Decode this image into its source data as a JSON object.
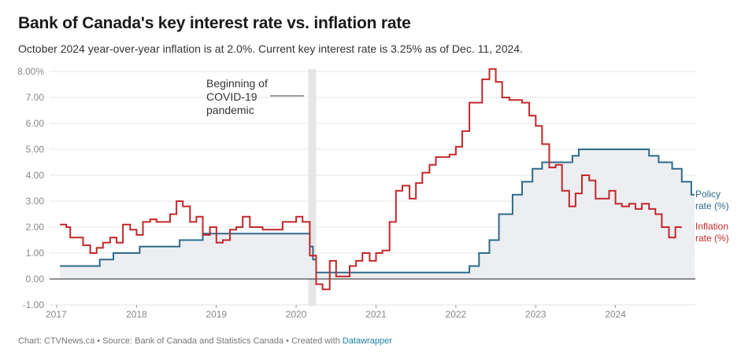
{
  "title": "Bank of Canada's key interest rate vs. inflation rate",
  "subtitle": "October 2024 year-over-year inflation is at 2.0%. Current key interest rate is 3.25% as of Dec. 11, 2024.",
  "footer": {
    "chart_credit": "Chart: CTVNews.ca",
    "sep": " • ",
    "source": "Source: Bank of Canada and Statistics Canada",
    "created_with": "Created with ",
    "tool": "Datawrapper"
  },
  "annotation": {
    "line1": "Beginning of",
    "line2": "COVID-19",
    "line3": "pandemic"
  },
  "colors": {
    "policy": "#2e6a8a",
    "inflation": "#c0282b",
    "area": "#eceef1",
    "band": "#e5e5e5",
    "grid": "#e6e6e6"
  },
  "chart_data": {
    "type": "line",
    "xlabel": "",
    "ylabel": "",
    "xlim": [
      2017.0,
      2025.0
    ],
    "ylim": [
      -1.0,
      8.0
    ],
    "y_ticks": [
      -1,
      0,
      1,
      2,
      3,
      4,
      5,
      6,
      7,
      8
    ],
    "y_tick_labels": [
      "-1.00",
      "0.00",
      "1.00",
      "2.00",
      "3.00",
      "4.00",
      "5.00",
      "6.00",
      "7.00",
      "8.00%"
    ],
    "x_ticks": [
      2017,
      2018,
      2019,
      2020,
      2021,
      2022,
      2023,
      2024
    ],
    "x_tick_labels": [
      "2017",
      "2018",
      "2019",
      "2020",
      "2021",
      "2022",
      "2023",
      "2024"
    ],
    "highlight_band": {
      "start": 2020.15,
      "end": 2020.25,
      "label": "Beginning of COVID-19 pandemic"
    },
    "series": [
      {
        "name": "Policy rate (%)",
        "label_line1": "Policy",
        "label_line2": "rate (%)",
        "step": true,
        "points": [
          [
            2017.04,
            0.5
          ],
          [
            2017.54,
            0.75
          ],
          [
            2017.71,
            1.0
          ],
          [
            2018.04,
            1.25
          ],
          [
            2018.54,
            1.5
          ],
          [
            2018.83,
            1.75
          ],
          [
            2020.17,
            1.25
          ],
          [
            2020.21,
            0.75
          ],
          [
            2020.25,
            0.25
          ],
          [
            2022.17,
            0.5
          ],
          [
            2022.29,
            1.0
          ],
          [
            2022.42,
            1.5
          ],
          [
            2022.54,
            2.5
          ],
          [
            2022.71,
            3.25
          ],
          [
            2022.83,
            3.75
          ],
          [
            2022.96,
            4.25
          ],
          [
            2023.08,
            4.5
          ],
          [
            2023.46,
            4.75
          ],
          [
            2023.54,
            5.0
          ],
          [
            2024.42,
            4.75
          ],
          [
            2024.54,
            4.5
          ],
          [
            2024.71,
            4.25
          ],
          [
            2024.83,
            3.75
          ],
          [
            2024.95,
            3.25
          ],
          [
            2024.99,
            3.25
          ]
        ]
      },
      {
        "name": "Inflation rate (%)",
        "label_line1": "Inflation",
        "label_line2": "rate (%)",
        "step": true,
        "points": [
          [
            2017.04,
            2.1
          ],
          [
            2017.12,
            2.0
          ],
          [
            2017.17,
            1.6
          ],
          [
            2017.33,
            1.3
          ],
          [
            2017.42,
            1.0
          ],
          [
            2017.5,
            1.2
          ],
          [
            2017.58,
            1.4
          ],
          [
            2017.67,
            1.6
          ],
          [
            2017.75,
            1.4
          ],
          [
            2017.83,
            2.1
          ],
          [
            2017.92,
            1.9
          ],
          [
            2018.0,
            1.7
          ],
          [
            2018.08,
            2.2
          ],
          [
            2018.17,
            2.3
          ],
          [
            2018.25,
            2.2
          ],
          [
            2018.42,
            2.5
          ],
          [
            2018.5,
            3.0
          ],
          [
            2018.58,
            2.8
          ],
          [
            2018.67,
            2.2
          ],
          [
            2018.75,
            2.4
          ],
          [
            2018.83,
            1.7
          ],
          [
            2018.92,
            2.0
          ],
          [
            2019.0,
            1.4
          ],
          [
            2019.08,
            1.5
          ],
          [
            2019.17,
            1.9
          ],
          [
            2019.25,
            2.0
          ],
          [
            2019.33,
            2.4
          ],
          [
            2019.42,
            2.0
          ],
          [
            2019.58,
            1.9
          ],
          [
            2019.83,
            2.2
          ],
          [
            2020.0,
            2.4
          ],
          [
            2020.08,
            2.2
          ],
          [
            2020.17,
            0.9
          ],
          [
            2020.25,
            -0.2
          ],
          [
            2020.33,
            -0.4
          ],
          [
            2020.42,
            0.7
          ],
          [
            2020.5,
            0.1
          ],
          [
            2020.67,
            0.5
          ],
          [
            2020.75,
            0.7
          ],
          [
            2020.83,
            1.0
          ],
          [
            2020.92,
            0.7
          ],
          [
            2021.0,
            1.0
          ],
          [
            2021.08,
            1.1
          ],
          [
            2021.17,
            2.2
          ],
          [
            2021.25,
            3.4
          ],
          [
            2021.33,
            3.6
          ],
          [
            2021.42,
            3.1
          ],
          [
            2021.5,
            3.7
          ],
          [
            2021.58,
            4.1
          ],
          [
            2021.67,
            4.4
          ],
          [
            2021.75,
            4.7
          ],
          [
            2021.92,
            4.8
          ],
          [
            2022.0,
            5.1
          ],
          [
            2022.08,
            5.7
          ],
          [
            2022.17,
            6.8
          ],
          [
            2022.25,
            6.8
          ],
          [
            2022.33,
            7.7
          ],
          [
            2022.42,
            8.1
          ],
          [
            2022.5,
            7.6
          ],
          [
            2022.58,
            7.0
          ],
          [
            2022.67,
            6.9
          ],
          [
            2022.83,
            6.8
          ],
          [
            2022.92,
            6.3
          ],
          [
            2023.0,
            5.9
          ],
          [
            2023.08,
            5.2
          ],
          [
            2023.17,
            4.3
          ],
          [
            2023.25,
            4.4
          ],
          [
            2023.33,
            3.4
          ],
          [
            2023.42,
            2.8
          ],
          [
            2023.5,
            3.3
          ],
          [
            2023.58,
            4.0
          ],
          [
            2023.67,
            3.8
          ],
          [
            2023.75,
            3.1
          ],
          [
            2023.92,
            3.4
          ],
          [
            2024.0,
            2.9
          ],
          [
            2024.08,
            2.8
          ],
          [
            2024.17,
            2.9
          ],
          [
            2024.25,
            2.7
          ],
          [
            2024.33,
            2.9
          ],
          [
            2024.42,
            2.7
          ],
          [
            2024.5,
            2.5
          ],
          [
            2024.58,
            2.0
          ],
          [
            2024.67,
            1.6
          ],
          [
            2024.75,
            2.0
          ],
          [
            2024.83,
            2.0
          ]
        ]
      }
    ]
  }
}
